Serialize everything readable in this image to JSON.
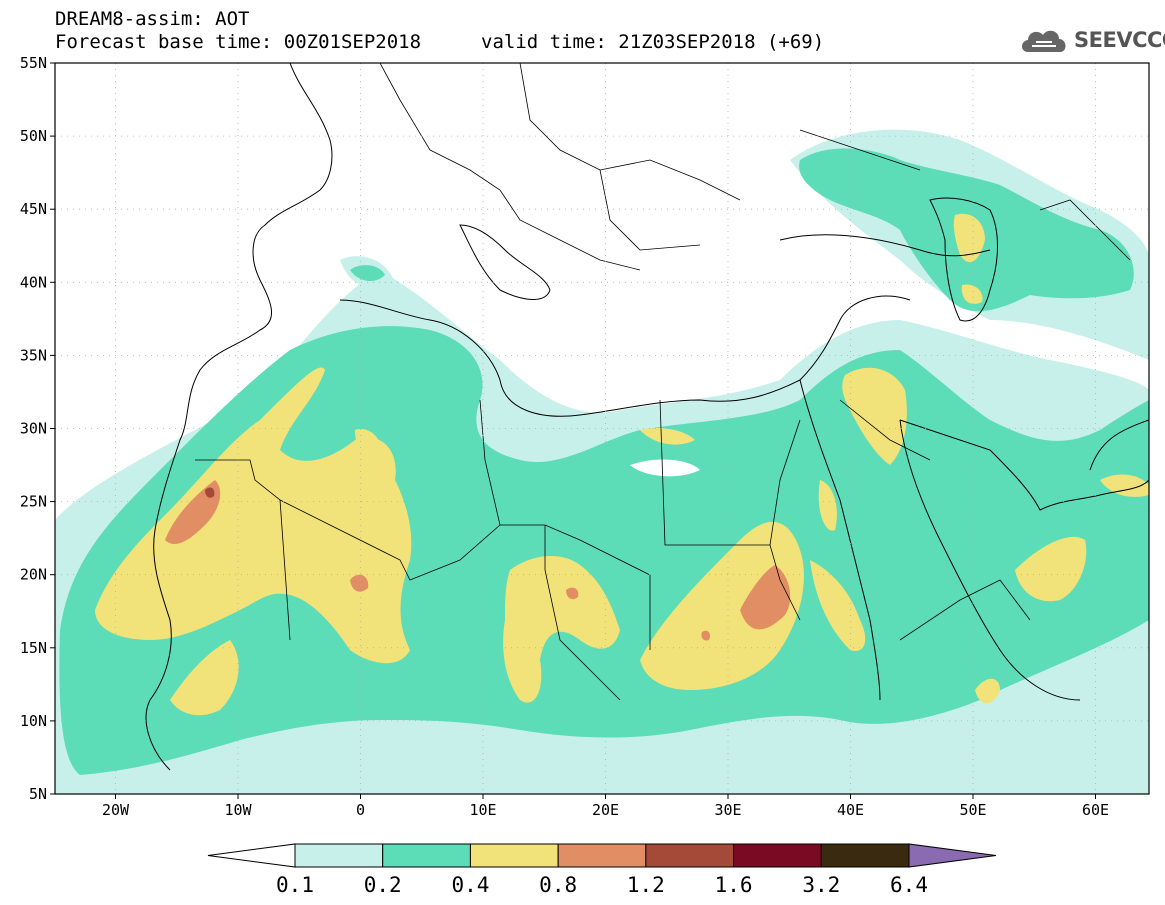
{
  "header": {
    "title": "DREAM8-assim: AOT",
    "base_time": "Forecast base time: 00Z01SEP2018",
    "valid_time": "valid time: 21Z03SEP2018 (+69)"
  },
  "logo": {
    "text": "SEEVCCC",
    "icon": "cloud-icon"
  },
  "map": {
    "lat_labels": [
      "55N",
      "50N",
      "45N",
      "40N",
      "35N",
      "30N",
      "25N",
      "20N",
      "15N",
      "10N",
      "5N"
    ],
    "lon_labels": [
      "20W",
      "10W",
      "0",
      "10E",
      "20E",
      "30E",
      "40E",
      "50E",
      "60E"
    ]
  },
  "colorbar": {
    "labels": [
      "0.1",
      "0.2",
      "0.4",
      "0.8",
      "1.2",
      "1.6",
      "3.2",
      "6.4"
    ],
    "colors": [
      "#ffffff",
      "#c8f0ea",
      "#5ddcb8",
      "#f2e27a",
      "#e28e64",
      "#a54a38",
      "#7a0a24",
      "#3a2a10",
      "#8a6ab0"
    ]
  },
  "palette": {
    "very_low": "#c8f0ea",
    "low": "#5ddcb8",
    "moderate": "#f2e27a",
    "high": "#e28e64",
    "very_high": "#a54a38"
  }
}
